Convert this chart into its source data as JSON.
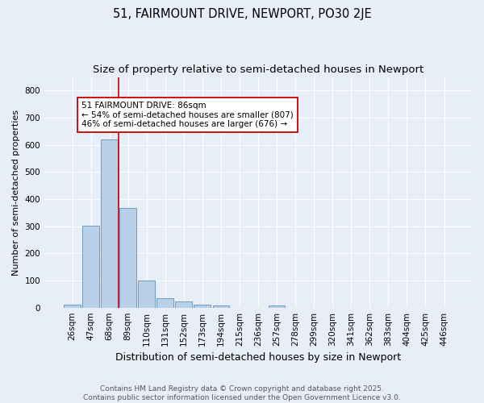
{
  "title": "51, FAIRMOUNT DRIVE, NEWPORT, PO30 2JE",
  "subtitle": "Size of property relative to semi-detached houses in Newport",
  "xlabel": "Distribution of semi-detached houses by size in Newport",
  "ylabel": "Number of semi-detached properties",
  "categories": [
    "26sqm",
    "47sqm",
    "68sqm",
    "89sqm",
    "110sqm",
    "131sqm",
    "152sqm",
    "173sqm",
    "194sqm",
    "215sqm",
    "236sqm",
    "257sqm",
    "278sqm",
    "299sqm",
    "320sqm",
    "341sqm",
    "362sqm",
    "383sqm",
    "404sqm",
    "425sqm",
    "446sqm"
  ],
  "values": [
    12,
    303,
    619,
    366,
    100,
    35,
    22,
    10,
    8,
    0,
    0,
    7,
    0,
    0,
    0,
    0,
    0,
    0,
    0,
    0,
    0
  ],
  "bar_color": "#b8d0e8",
  "bar_edge_color": "#6090b8",
  "background_color": "#e8eef8",
  "grid_color": "#ffffff",
  "red_line_index": 3,
  "red_line_color": "#cc0000",
  "annotation_text": "51 FAIRMOUNT DRIVE: 86sqm\n← 54% of semi-detached houses are smaller (807)\n46% of semi-detached houses are larger (676) →",
  "annotation_box_facecolor": "#ffffff",
  "annotation_box_edgecolor": "#cc0000",
  "ylim": [
    0,
    850
  ],
  "yticks": [
    0,
    100,
    200,
    300,
    400,
    500,
    600,
    700,
    800
  ],
  "copyright_text": "Contains HM Land Registry data © Crown copyright and database right 2025.\nContains public sector information licensed under the Open Government Licence v3.0.",
  "title_fontsize": 10.5,
  "subtitle_fontsize": 9.5,
  "xlabel_fontsize": 9,
  "ylabel_fontsize": 8,
  "tick_fontsize": 7.5,
  "annotation_fontsize": 7.5,
  "copyright_fontsize": 6.5
}
